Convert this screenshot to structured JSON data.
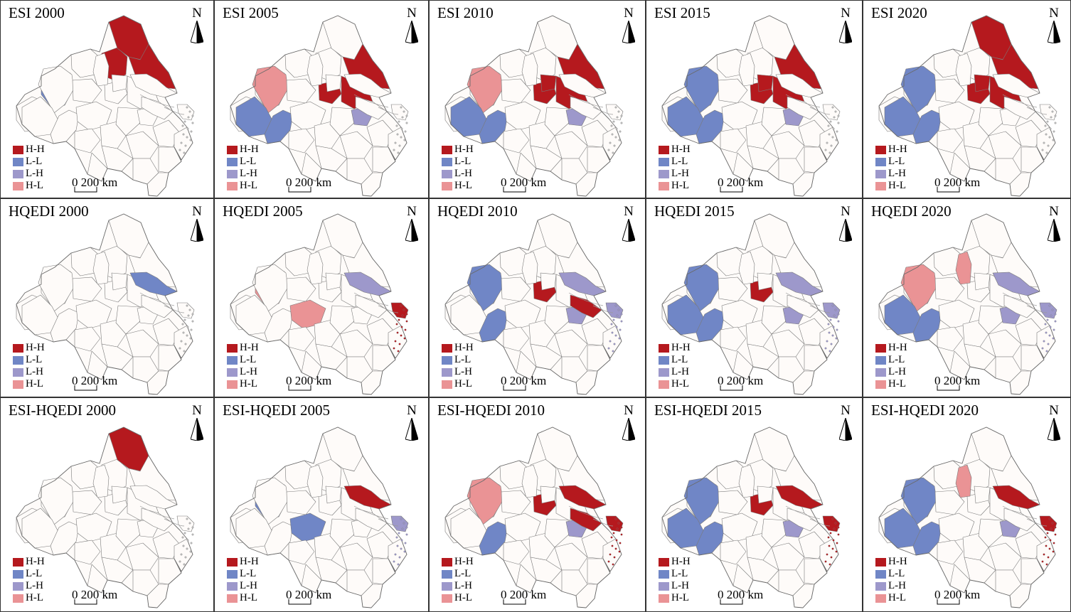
{
  "colors": {
    "H-H": "#b5191e",
    "L-L": "#7086c6",
    "L-H": "#9d98cb",
    "H-L": "#ea9395",
    "none": "#fefbf9"
  },
  "legend": [
    {
      "key": "H-H",
      "label": "H-H"
    },
    {
      "key": "L-L",
      "label": "L-L"
    },
    {
      "key": "L-H",
      "label": "L-H"
    },
    {
      "key": "H-L",
      "label": "H-L"
    }
  ],
  "north_label": "N",
  "scale": {
    "zero": "0",
    "label": "200 km"
  },
  "rows": [
    {
      "index": "ESI",
      "panels": [
        {
          "title": "ESI 2000",
          "classes": {
            "H-H": [
              "r4",
              "r5",
              "r6"
            ],
            "L-L": [
              "r2"
            ],
            "L-H": [],
            "H-L": []
          }
        },
        {
          "title": "ESI 2005",
          "classes": {
            "H-H": [
              "r6",
              "r7",
              "r8"
            ],
            "L-L": [
              "r14",
              "r15"
            ],
            "L-H": [
              "r20"
            ],
            "H-L": [
              "r9"
            ]
          }
        },
        {
          "title": "ESI 2010",
          "classes": {
            "H-H": [
              "r6",
              "r7",
              "r8",
              "r11"
            ],
            "L-L": [
              "r14",
              "r15"
            ],
            "L-H": [
              "r20"
            ],
            "H-L": [
              "r9"
            ]
          }
        },
        {
          "title": "ESI 2015",
          "classes": {
            "H-H": [
              "r6",
              "r7",
              "r8",
              "r11"
            ],
            "L-L": [
              "r9",
              "r14",
              "r15"
            ],
            "L-H": [
              "r20"
            ],
            "H-L": []
          }
        },
        {
          "title": "ESI 2020",
          "classes": {
            "H-H": [
              "r5",
              "r6",
              "r7",
              "r8",
              "r11"
            ],
            "L-L": [
              "r9",
              "r14",
              "r15"
            ],
            "L-H": [],
            "H-L": []
          }
        }
      ]
    },
    {
      "index": "HQEDI",
      "panels": [
        {
          "title": "HQEDI 2000",
          "classes": {
            "H-H": [],
            "L-L": [
              "r12"
            ],
            "L-H": [],
            "H-L": []
          }
        },
        {
          "title": "HQEDI 2005",
          "classes": {
            "H-H": [
              "r30"
            ],
            "L-L": [],
            "L-H": [
              "r12"
            ],
            "H-L": [
              "r2",
              "r16"
            ]
          }
        },
        {
          "title": "HQEDI 2010",
          "classes": {
            "H-H": [
              "r7",
              "r21"
            ],
            "L-L": [
              "r9",
              "r15"
            ],
            "L-H": [
              "r12",
              "r20",
              "r30"
            ],
            "H-L": []
          }
        },
        {
          "title": "HQEDI 2015",
          "classes": {
            "H-H": [
              "r7"
            ],
            "L-L": [
              "r9",
              "r14",
              "r15"
            ],
            "L-H": [
              "r12",
              "r20",
              "r30"
            ],
            "H-L": []
          }
        },
        {
          "title": "HQEDI 2020",
          "classes": {
            "H-H": [],
            "L-L": [
              "r14",
              "r15"
            ],
            "L-H": [
              "r12",
              "r20",
              "r30"
            ],
            "H-L": [
              "r9",
              "r10"
            ]
          }
        }
      ]
    },
    {
      "index": "ESI-HQEDI",
      "panels": [
        {
          "title": "ESI-HQEDI 2000",
          "classes": {
            "H-H": [
              "r5"
            ],
            "L-L": [],
            "L-H": [],
            "H-L": []
          }
        },
        {
          "title": "ESI-HQEDI 2005",
          "classes": {
            "H-H": [
              "r12"
            ],
            "L-L": [
              "r2",
              "r16"
            ],
            "L-H": [
              "r30"
            ],
            "H-L": []
          }
        },
        {
          "title": "ESI-HQEDI 2010",
          "classes": {
            "H-H": [
              "r7",
              "r12",
              "r21",
              "r30"
            ],
            "L-L": [
              "r15"
            ],
            "L-H": [
              "r20"
            ],
            "H-L": [
              "r9"
            ]
          }
        },
        {
          "title": "ESI-HQEDI 2015",
          "classes": {
            "H-H": [
              "r7",
              "r12",
              "r30"
            ],
            "L-L": [
              "r9",
              "r14",
              "r15"
            ],
            "L-H": [
              "r20"
            ],
            "H-L": []
          }
        },
        {
          "title": "ESI-HQEDI 2020",
          "classes": {
            "H-H": [
              "r12",
              "r30"
            ],
            "L-L": [
              "r9",
              "r14",
              "r15"
            ],
            "L-H": [
              "r20"
            ],
            "H-L": [
              "r10"
            ]
          }
        }
      ]
    }
  ]
}
